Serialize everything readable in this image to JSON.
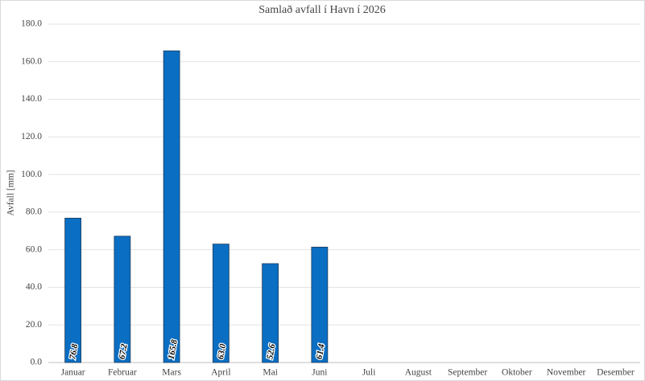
{
  "chart_data": {
    "type": "bar",
    "title": "Samlað avfall í Havn í 2026",
    "y_label": "Avfall [mm]",
    "categories": [
      "Januar",
      "Februar",
      "Mars",
      "April",
      "Mai",
      "Juni",
      "Juli",
      "August",
      "September",
      "Oktober",
      "November",
      "Desember"
    ],
    "values": [
      76.8,
      67.2,
      165.8,
      63.0,
      52.6,
      61.4,
      null,
      null,
      null,
      null,
      null,
      null
    ],
    "value_labels": [
      "76.8",
      "67.2",
      "165.8",
      "63.0",
      "52.6",
      "61.4",
      null,
      null,
      null,
      null,
      null,
      null
    ],
    "color": "#0a6ec2",
    "ylim": [
      0,
      180
    ],
    "yticks": [
      {
        "value": 0,
        "label": "0.0"
      },
      {
        "value": 20,
        "label": "20.0"
      },
      {
        "value": 40,
        "label": "40.0"
      },
      {
        "value": 60,
        "label": "60.0"
      },
      {
        "value": 80,
        "label": "80.0"
      },
      {
        "value": 100,
        "label": "100.0"
      },
      {
        "value": 120,
        "label": "120.0"
      },
      {
        "value": 140,
        "label": "140.0"
      },
      {
        "value": 160,
        "label": "160.0"
      },
      {
        "value": 180,
        "label": "180.0"
      }
    ],
    "grid": true
  }
}
